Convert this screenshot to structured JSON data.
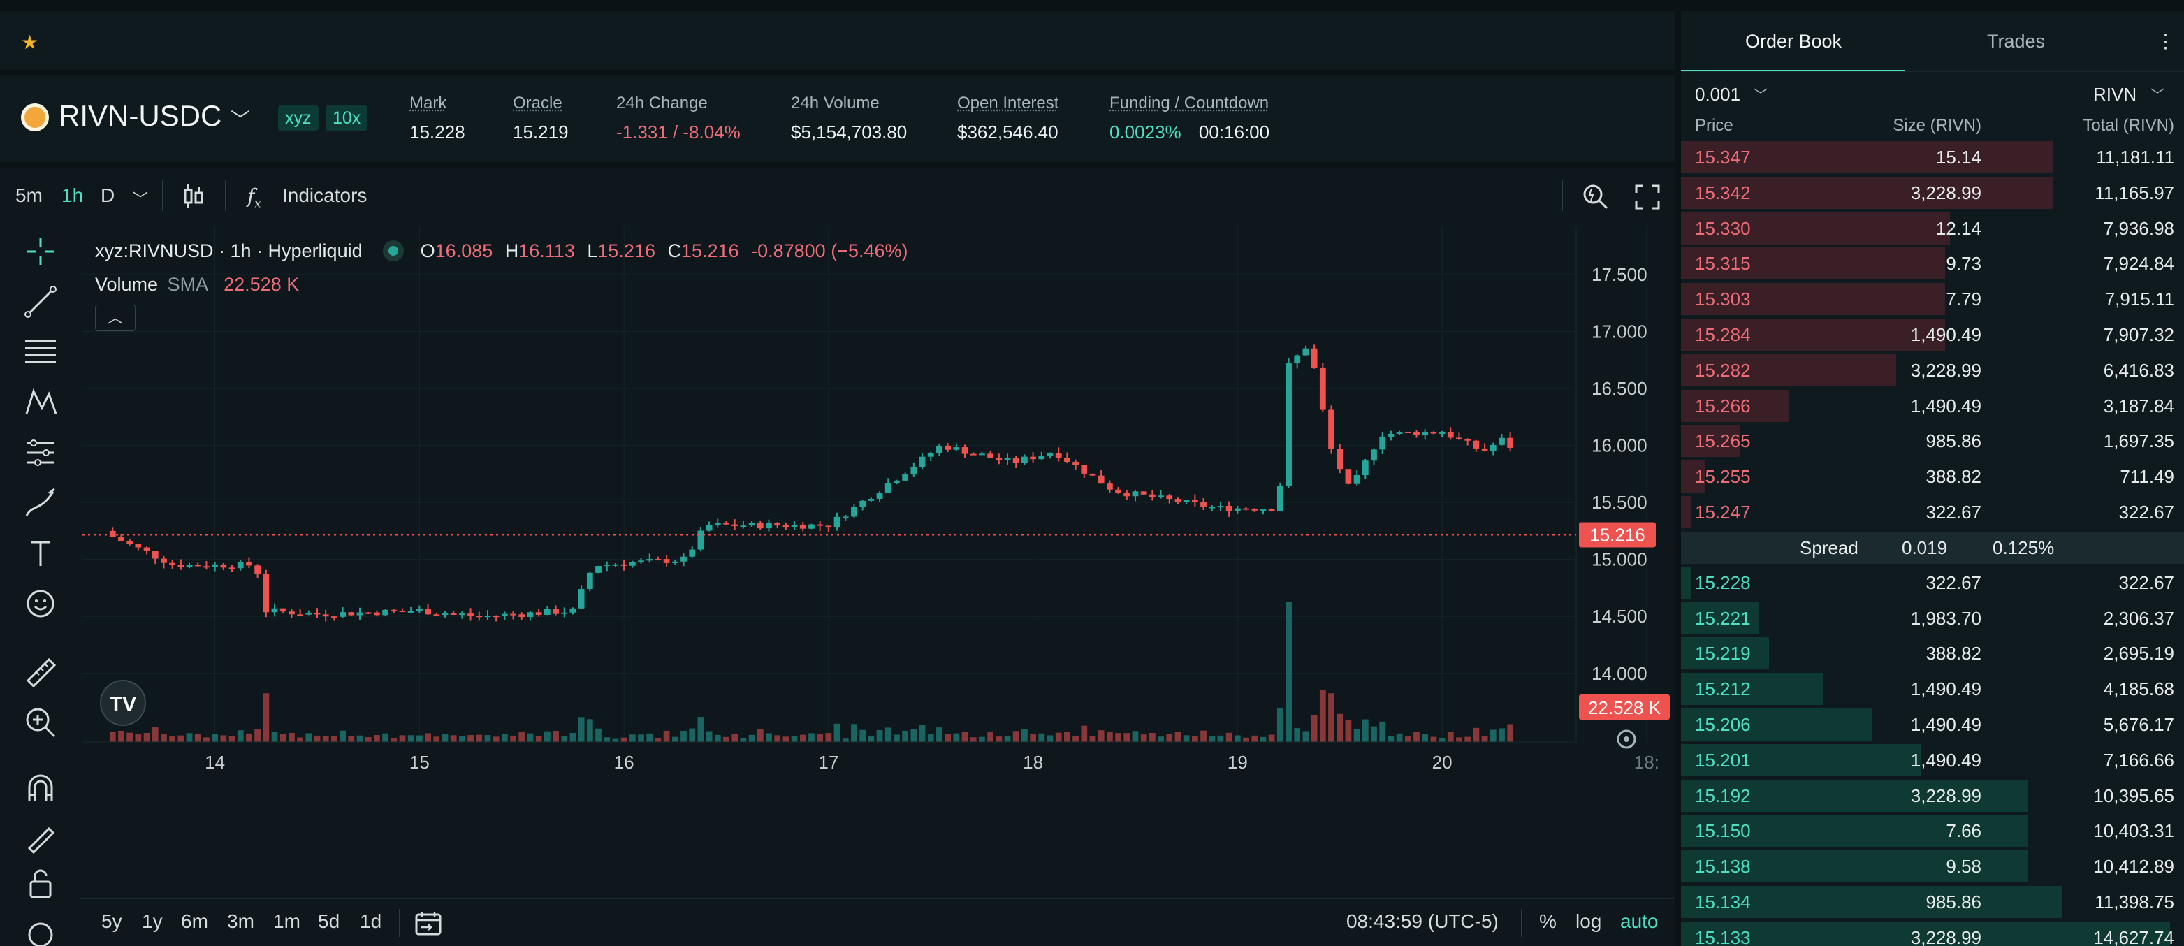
{
  "top_bar": {
    "favorite_icon": "star-icon"
  },
  "ticker": {
    "pair": "RIVN-USDC",
    "badges": [
      "xyz",
      "10x"
    ],
    "stats": [
      {
        "label": "Mark",
        "value": "15.228"
      },
      {
        "label": "Oracle",
        "value": "15.219"
      },
      {
        "label": "24h Change",
        "value": "-1.331 / -8.04%"
      },
      {
        "label": "24h Volume",
        "value": "$5,154,703.80"
      },
      {
        "label": "Open Interest",
        "value": "$362,546.40"
      },
      {
        "label": "Funding / Countdown",
        "value": "0.0023%",
        "value2": "00:16:00"
      }
    ]
  },
  "chart_toolbar": {
    "intervals": [
      "5m",
      "1h",
      "D"
    ],
    "active_interval": "1h",
    "indicators_label": "Indicators"
  },
  "legend": {
    "symbol": "xyz:RIVNUSD · 1h · Hyperliquid",
    "o_label": "O",
    "o": "16.085",
    "h_label": "H",
    "h": "16.113",
    "l_label": "L",
    "l": "15.216",
    "c_label": "C",
    "c": "15.216",
    "change": "-0.87800 (−5.46%)",
    "volume_label": "Volume",
    "sma_label": "SMA",
    "volume_value": "22.528 K"
  },
  "chart_data": {
    "type": "candlestick",
    "price_axis": [
      "17.500",
      "17.000",
      "16.500",
      "16.000",
      "15.500",
      "15.000",
      "14.500",
      "14.000"
    ],
    "price_range": [
      13.6,
      17.8
    ],
    "date_axis": [
      "14",
      "15",
      "16",
      "17",
      "18",
      "19",
      "20",
      "18:"
    ],
    "last_price_label": "15.216",
    "volume_label": "22.528 K",
    "anchors": [
      {
        "day": 13.5,
        "close": 15.2
      },
      {
        "day": 13.8,
        "close": 14.95
      },
      {
        "day": 14.2,
        "close": 14.95
      },
      {
        "day": 14.25,
        "close": 14.55
      },
      {
        "day": 14.5,
        "close": 14.52
      },
      {
        "day": 15.0,
        "close": 14.55
      },
      {
        "day": 15.3,
        "close": 14.5
      },
      {
        "day": 15.75,
        "close": 14.55
      },
      {
        "day": 15.85,
        "close": 14.95
      },
      {
        "day": 16.3,
        "close": 15.0
      },
      {
        "day": 16.4,
        "close": 15.3
      },
      {
        "day": 17.0,
        "close": 15.3
      },
      {
        "day": 17.4,
        "close": 15.8
      },
      {
        "day": 17.55,
        "close": 16.0
      },
      {
        "day": 17.9,
        "close": 15.85
      },
      {
        "day": 18.1,
        "close": 15.95
      },
      {
        "day": 18.4,
        "close": 15.6
      },
      {
        "day": 18.9,
        "close": 15.45
      },
      {
        "day": 19.2,
        "close": 15.45
      },
      {
        "day": 19.25,
        "close": 16.7
      },
      {
        "day": 19.35,
        "close": 16.9
      },
      {
        "day": 19.45,
        "close": 16.0
      },
      {
        "day": 19.55,
        "close": 15.6
      },
      {
        "day": 19.7,
        "close": 16.1
      },
      {
        "day": 20.0,
        "close": 16.12
      },
      {
        "day": 20.2,
        "close": 15.95
      },
      {
        "day": 20.33,
        "close": 16.09
      },
      {
        "day": 20.36,
        "close": 15.216
      }
    ]
  },
  "bottom_bar": {
    "ranges": [
      "5y",
      "1y",
      "6m",
      "3m",
      "1m",
      "5d",
      "1d"
    ],
    "time": "08:43:59 (UTC-5)",
    "scale_options": [
      "%",
      "log",
      "auto"
    ]
  },
  "orderbook": {
    "tabs": [
      "Order Book",
      "Trades"
    ],
    "tick_size": "0.001",
    "unit": "RIVN",
    "headers": [
      "Price",
      "Size (RIVN)",
      "Total (RIVN)"
    ],
    "asks": [
      {
        "price": "15.347",
        "size": "15.14",
        "total": "11,181.11",
        "depth": 0.76
      },
      {
        "price": "15.342",
        "size": "3,228.99",
        "total": "11,165.97",
        "depth": 0.76
      },
      {
        "price": "15.330",
        "size": "12.14",
        "total": "7,936.98",
        "depth": 0.55
      },
      {
        "price": "15.315",
        "size": "9.73",
        "total": "7,924.84",
        "depth": 0.54
      },
      {
        "price": "15.303",
        "size": "7.79",
        "total": "7,915.11",
        "depth": 0.54
      },
      {
        "price": "15.284",
        "size": "1,490.49",
        "total": "7,907.32",
        "depth": 0.54
      },
      {
        "price": "15.282",
        "size": "3,228.99",
        "total": "6,416.83",
        "depth": 0.44
      },
      {
        "price": "15.266",
        "size": "1,490.49",
        "total": "3,187.84",
        "depth": 0.22
      },
      {
        "price": "15.265",
        "size": "985.86",
        "total": "1,697.35",
        "depth": 0.12
      },
      {
        "price": "15.255",
        "size": "388.82",
        "total": "711.49",
        "depth": 0.05
      },
      {
        "price": "15.247",
        "size": "322.67",
        "total": "322.67",
        "depth": 0.02
      }
    ],
    "spread": {
      "label": "Spread",
      "value": "0.019",
      "percent": "0.125%"
    },
    "bids": [
      {
        "price": "15.228",
        "size": "322.67",
        "total": "322.67",
        "depth": 0.02
      },
      {
        "price": "15.221",
        "size": "1,983.70",
        "total": "2,306.37",
        "depth": 0.16
      },
      {
        "price": "15.219",
        "size": "388.82",
        "total": "2,695.19",
        "depth": 0.18
      },
      {
        "price": "15.212",
        "size": "1,490.49",
        "total": "4,185.68",
        "depth": 0.29
      },
      {
        "price": "15.206",
        "size": "1,490.49",
        "total": "5,676.17",
        "depth": 0.39
      },
      {
        "price": "15.201",
        "size": "1,490.49",
        "total": "7,166.66",
        "depth": 0.49
      },
      {
        "price": "15.192",
        "size": "3,228.99",
        "total": "10,395.65",
        "depth": 0.71
      },
      {
        "price": "15.150",
        "size": "7.66",
        "total": "10,403.31",
        "depth": 0.71
      },
      {
        "price": "15.138",
        "size": "9.58",
        "total": "10,412.89",
        "depth": 0.71
      },
      {
        "price": "15.134",
        "size": "985.86",
        "total": "11,398.75",
        "depth": 0.78
      },
      {
        "price": "15.133",
        "size": "3,228.99",
        "total": "14,627.74",
        "depth": 1.0
      }
    ]
  },
  "colors": {
    "up": "#26a69a",
    "down": "#ef5350",
    "accent": "#4fe0c3",
    "ask_bar": "#3a1f26",
    "bid_bar": "#0f3a33"
  }
}
